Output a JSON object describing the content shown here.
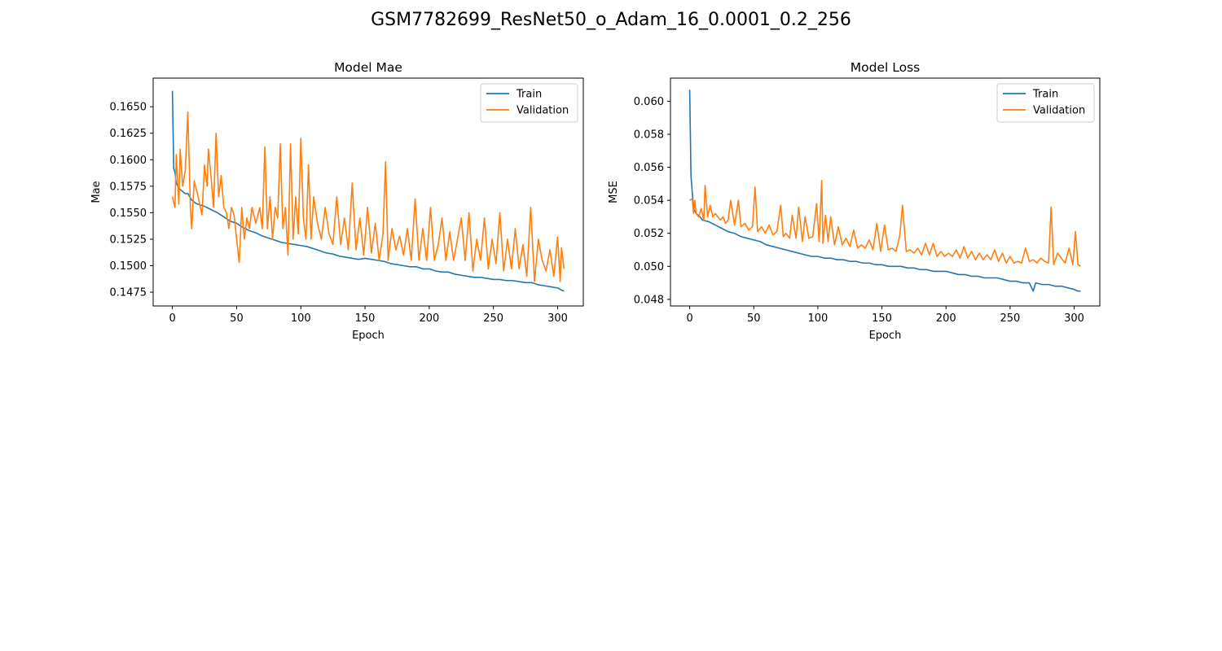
{
  "figure": {
    "title": "GSM7782699_ResNet50_o_Adam_16_0.0001_0.2_256"
  },
  "chart_data": [
    {
      "type": "line",
      "title": "Model Mae",
      "xlabel": "Epoch",
      "ylabel": "Mae",
      "xlim": [
        -15,
        320
      ],
      "ylim": [
        0.1462,
        0.1677
      ],
      "xticks": [
        0,
        50,
        100,
        150,
        200,
        250,
        300
      ],
      "yticks": [
        0.1475,
        0.15,
        0.1525,
        0.155,
        0.1575,
        0.16,
        0.1625,
        0.165
      ],
      "ytick_labels": [
        "0.1475",
        "0.1500",
        "0.1525",
        "0.1550",
        "0.1575",
        "0.1600",
        "0.1625",
        "0.1650"
      ],
      "legend_position": "upper right",
      "series": [
        {
          "name": "Train",
          "color": "#1f77b4",
          "x": [
            0,
            1,
            2,
            3,
            5,
            8,
            10,
            12,
            15,
            18,
            20,
            25,
            30,
            35,
            40,
            45,
            50,
            55,
            60,
            65,
            70,
            75,
            80,
            85,
            90,
            95,
            100,
            105,
            110,
            115,
            120,
            125,
            130,
            135,
            140,
            145,
            150,
            155,
            160,
            165,
            170,
            175,
            180,
            185,
            190,
            195,
            200,
            205,
            210,
            215,
            220,
            225,
            230,
            235,
            240,
            245,
            250,
            255,
            260,
            265,
            270,
            275,
            280,
            285,
            290,
            295,
            300,
            303,
            305
          ],
          "y": [
            0.1665,
            0.1592,
            0.1588,
            0.1578,
            0.1573,
            0.157,
            0.1568,
            0.1568,
            0.1562,
            0.1559,
            0.1558,
            0.1556,
            0.1553,
            0.155,
            0.1546,
            0.1542,
            0.154,
            0.1536,
            0.1533,
            0.1531,
            0.1528,
            0.1526,
            0.1524,
            0.1522,
            0.1521,
            0.152,
            0.1519,
            0.1518,
            0.1516,
            0.1514,
            0.1512,
            0.1511,
            0.1509,
            0.1508,
            0.1507,
            0.1506,
            0.1507,
            0.1506,
            0.1505,
            0.1504,
            0.1502,
            0.1501,
            0.15,
            0.1499,
            0.1499,
            0.1497,
            0.1497,
            0.1495,
            0.1494,
            0.1494,
            0.1492,
            0.1491,
            0.149,
            0.1489,
            0.1489,
            0.1488,
            0.1487,
            0.1487,
            0.1486,
            0.1486,
            0.1485,
            0.1484,
            0.1484,
            0.1482,
            0.1481,
            0.148,
            0.1479,
            0.1477,
            0.1476
          ]
        },
        {
          "name": "Validation",
          "color": "#ff7f0e",
          "x": [
            0,
            2,
            3,
            5,
            6,
            8,
            10,
            12,
            14,
            15,
            17,
            20,
            23,
            25,
            27,
            28,
            30,
            32,
            34,
            36,
            38,
            40,
            42,
            44,
            46,
            48,
            50,
            52,
            54,
            56,
            58,
            60,
            62,
            65,
            68,
            70,
            72,
            74,
            76,
            78,
            80,
            82,
            84,
            86,
            88,
            90,
            92,
            94,
            96,
            98,
            100,
            102,
            104,
            106,
            108,
            110,
            113,
            116,
            119,
            122,
            125,
            128,
            131,
            134,
            137,
            140,
            143,
            146,
            149,
            152,
            155,
            158,
            161,
            164,
            166,
            168,
            171,
            174,
            177,
            180,
            183,
            186,
            189,
            192,
            195,
            198,
            201,
            204,
            207,
            210,
            213,
            216,
            219,
            222,
            225,
            228,
            231,
            234,
            237,
            240,
            243,
            246,
            249,
            252,
            255,
            258,
            261,
            264,
            267,
            270,
            273,
            276,
            279,
            282,
            285,
            288,
            291,
            294,
            297,
            300,
            302,
            303,
            305
          ],
          "y": [
            0.1565,
            0.1555,
            0.1605,
            0.1558,
            0.161,
            0.1575,
            0.159,
            0.1645,
            0.1555,
            0.1535,
            0.158,
            0.1565,
            0.1548,
            0.1595,
            0.1575,
            0.161,
            0.1585,
            0.1555,
            0.1625,
            0.1565,
            0.1585,
            0.1555,
            0.155,
            0.1535,
            0.1555,
            0.1548,
            0.1525,
            0.1503,
            0.1555,
            0.1525,
            0.1545,
            0.1535,
            0.1555,
            0.154,
            0.1555,
            0.1535,
            0.1612,
            0.1535,
            0.1565,
            0.1525,
            0.1555,
            0.1545,
            0.1615,
            0.1535,
            0.1555,
            0.151,
            0.1615,
            0.1525,
            0.1565,
            0.153,
            0.162,
            0.1545,
            0.1525,
            0.1595,
            0.1525,
            0.1565,
            0.154,
            0.1525,
            0.1555,
            0.153,
            0.152,
            0.1565,
            0.152,
            0.1545,
            0.1515,
            0.1578,
            0.1515,
            0.1545,
            0.151,
            0.1555,
            0.1512,
            0.154,
            0.1505,
            0.153,
            0.1598,
            0.1505,
            0.1535,
            0.1515,
            0.1528,
            0.151,
            0.1535,
            0.1505,
            0.1563,
            0.1505,
            0.1535,
            0.1505,
            0.1555,
            0.1505,
            0.152,
            0.1545,
            0.1505,
            0.1532,
            0.1505,
            0.1525,
            0.1545,
            0.1505,
            0.155,
            0.1495,
            0.1525,
            0.1505,
            0.1545,
            0.1497,
            0.1525,
            0.1502,
            0.155,
            0.1495,
            0.1525,
            0.1497,
            0.1535,
            0.1497,
            0.152,
            0.149,
            0.1555,
            0.1485,
            0.1525,
            0.1505,
            0.1495,
            0.1515,
            0.149,
            0.1527,
            0.1485,
            0.1517,
            0.1497
          ]
        }
      ]
    },
    {
      "type": "line",
      "title": "Model Loss",
      "xlabel": "Epoch",
      "ylabel": "MSE",
      "xlim": [
        -15,
        320
      ],
      "ylim": [
        0.0476,
        0.0614
      ],
      "xticks": [
        0,
        50,
        100,
        150,
        200,
        250,
        300
      ],
      "yticks": [
        0.048,
        0.05,
        0.052,
        0.054,
        0.056,
        0.058,
        0.06
      ],
      "ytick_labels": [
        "0.048",
        "0.050",
        "0.052",
        "0.054",
        "0.056",
        "0.058",
        "0.060"
      ],
      "legend_position": "upper right",
      "series": [
        {
          "name": "Train",
          "color": "#1f77b4",
          "x": [
            0,
            1,
            2,
            3,
            5,
            8,
            10,
            15,
            20,
            25,
            30,
            35,
            40,
            45,
            50,
            55,
            60,
            65,
            70,
            75,
            80,
            85,
            90,
            95,
            100,
            105,
            110,
            115,
            120,
            125,
            130,
            135,
            140,
            145,
            150,
            155,
            160,
            165,
            170,
            175,
            180,
            185,
            190,
            195,
            200,
            205,
            210,
            215,
            220,
            225,
            230,
            235,
            240,
            245,
            250,
            255,
            260,
            265,
            268,
            270,
            275,
            280,
            285,
            290,
            295,
            300,
            303,
            305
          ],
          "y": [
            0.0607,
            0.0555,
            0.0545,
            0.0535,
            0.0532,
            0.053,
            0.0528,
            0.0527,
            0.0525,
            0.0523,
            0.0521,
            0.052,
            0.0518,
            0.0517,
            0.0516,
            0.0515,
            0.0513,
            0.0512,
            0.0511,
            0.051,
            0.0509,
            0.0508,
            0.0507,
            0.0506,
            0.0506,
            0.0505,
            0.0505,
            0.0504,
            0.0504,
            0.0503,
            0.0503,
            0.0502,
            0.0502,
            0.0501,
            0.0501,
            0.05,
            0.05,
            0.05,
            0.0499,
            0.0499,
            0.0498,
            0.0498,
            0.0497,
            0.0497,
            0.0497,
            0.0496,
            0.0495,
            0.0495,
            0.0494,
            0.0494,
            0.0493,
            0.0493,
            0.0493,
            0.0492,
            0.0491,
            0.0491,
            0.049,
            0.049,
            0.0485,
            0.049,
            0.0489,
            0.0489,
            0.0488,
            0.0488,
            0.0487,
            0.0486,
            0.0485,
            0.0485
          ]
        },
        {
          "name": "Validation",
          "color": "#ff7f0e",
          "x": [
            0,
            2,
            3,
            4,
            5,
            7,
            9,
            11,
            12,
            14,
            16,
            18,
            20,
            22,
            24,
            26,
            28,
            30,
            32,
            35,
            38,
            40,
            43,
            46,
            49,
            51,
            53,
            56,
            59,
            62,
            65,
            68,
            71,
            73,
            75,
            78,
            80,
            83,
            85,
            88,
            90,
            93,
            96,
            99,
            101,
            103,
            104,
            106,
            108,
            110,
            113,
            116,
            119,
            122,
            125,
            128,
            131,
            134,
            137,
            140,
            143,
            146,
            149,
            152,
            155,
            158,
            161,
            164,
            166,
            169,
            172,
            175,
            178,
            181,
            184,
            187,
            190,
            193,
            196,
            199,
            202,
            205,
            208,
            211,
            214,
            217,
            220,
            223,
            226,
            229,
            232,
            235,
            238,
            241,
            244,
            247,
            250,
            253,
            256,
            259,
            262,
            265,
            268,
            271,
            274,
            277,
            280,
            282,
            284,
            287,
            290,
            293,
            296,
            299,
            301,
            303,
            305
          ],
          "y": [
            0.054,
            0.0541,
            0.0532,
            0.054,
            0.0532,
            0.053,
            0.0535,
            0.0528,
            0.0549,
            0.053,
            0.0537,
            0.053,
            0.0532,
            0.053,
            0.0528,
            0.053,
            0.0526,
            0.0528,
            0.054,
            0.0525,
            0.054,
            0.0524,
            0.0526,
            0.0522,
            0.0524,
            0.0548,
            0.0521,
            0.0524,
            0.052,
            0.0525,
            0.0519,
            0.0521,
            0.0537,
            0.0518,
            0.052,
            0.0517,
            0.0531,
            0.0517,
            0.0536,
            0.0515,
            0.053,
            0.0517,
            0.0518,
            0.0538,
            0.0515,
            0.0552,
            0.0514,
            0.0531,
            0.0515,
            0.053,
            0.0513,
            0.0524,
            0.0513,
            0.0517,
            0.0512,
            0.0522,
            0.0511,
            0.0513,
            0.0511,
            0.0516,
            0.051,
            0.0526,
            0.0509,
            0.0525,
            0.051,
            0.0511,
            0.0509,
            0.0519,
            0.0537,
            0.0509,
            0.051,
            0.0508,
            0.0511,
            0.0507,
            0.0514,
            0.0507,
            0.0514,
            0.0506,
            0.0509,
            0.0506,
            0.0508,
            0.0506,
            0.051,
            0.0505,
            0.0512,
            0.0505,
            0.0509,
            0.0504,
            0.0508,
            0.0504,
            0.0507,
            0.0504,
            0.051,
            0.0503,
            0.0508,
            0.0502,
            0.0506,
            0.0502,
            0.0503,
            0.0502,
            0.0511,
            0.0503,
            0.0504,
            0.0502,
            0.0505,
            0.0503,
            0.0502,
            0.0536,
            0.0501,
            0.0508,
            0.0505,
            0.0502,
            0.0511,
            0.0501,
            0.0521,
            0.0501,
            0.05
          ]
        }
      ]
    }
  ]
}
